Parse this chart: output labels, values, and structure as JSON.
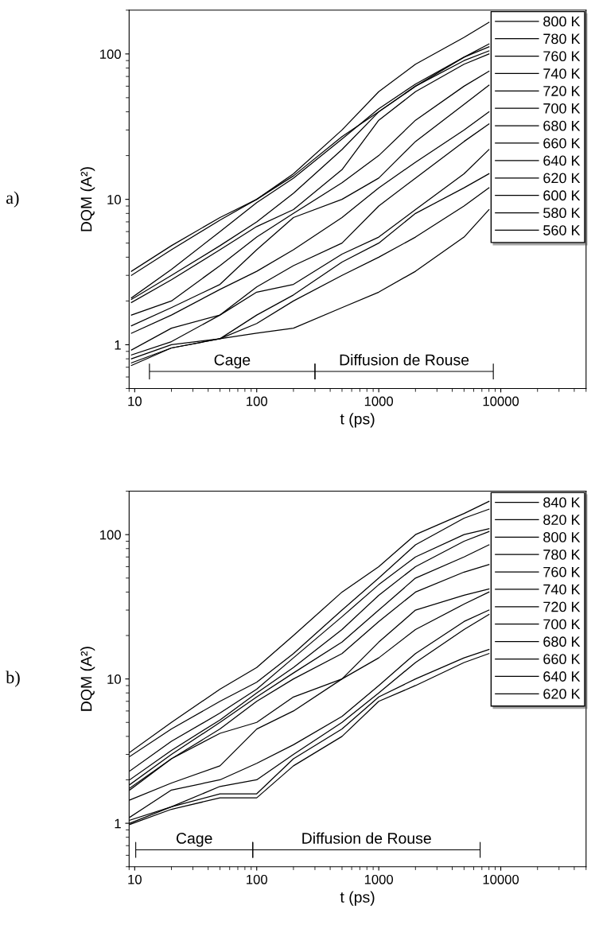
{
  "chart_data": [
    {
      "type": "line",
      "xlabel": "t (ps)",
      "ylabel": "DQM (A²)",
      "log": "xy",
      "xlim": [
        9,
        50000
      ],
      "ylim": [
        0.5,
        200
      ],
      "xticks": [
        10,
        100,
        1000,
        10000
      ],
      "yticks": [
        1,
        10,
        100
      ],
      "legend": "top right",
      "grid": false,
      "marker": "none",
      "line_style": "solid",
      "annotations": [
        "a)",
        "Cage",
        "Diffusion de Rouse"
      ],
      "x": [
        9.4,
        20,
        50,
        100,
        200,
        500,
        1000,
        2000,
        5000,
        8000
      ],
      "series": [
        {
          "name": "800 K",
          "color": "#000000",
          "values": [
            3.2,
            4.8,
            7.5,
            10,
            15,
            30,
            55,
            85,
            130,
            165
          ]
        },
        {
          "name": "780 K",
          "color": "#000000",
          "values": [
            3.0,
            4.5,
            7.2,
            10,
            14.5,
            27,
            40,
            60,
            95,
            117
          ]
        },
        {
          "name": "760 K",
          "color": "#000000",
          "values": [
            2.1,
            3.3,
            6,
            9.5,
            14,
            26,
            42,
            62,
            95,
            112
          ]
        },
        {
          "name": "740 K",
          "color": "#000000",
          "values": [
            2.05,
            3.0,
            4.8,
            7,
            11,
            22,
            40,
            60,
            90,
            105
          ]
        },
        {
          "name": "720 K",
          "color": "#000000",
          "values": [
            1.95,
            2.8,
            4.5,
            6.5,
            8.5,
            16,
            35,
            55,
            85,
            100
          ]
        },
        {
          "name": "700 K",
          "color": "#000000",
          "values": [
            1.6,
            2.0,
            3.5,
            5.5,
            8,
            13,
            20,
            35,
            60,
            76
          ]
        },
        {
          "name": "680 K",
          "color": "#000000",
          "values": [
            1.35,
            1.8,
            2.6,
            4.5,
            7.5,
            10,
            14,
            25,
            45,
            61
          ]
        },
        {
          "name": "660 K",
          "color": "#000000",
          "values": [
            1.2,
            1.6,
            2.4,
            3.2,
            4.5,
            7.5,
            12,
            18,
            30,
            40
          ]
        },
        {
          "name": "640 K",
          "color": "#000000",
          "values": [
            0.92,
            1.3,
            1.6,
            2.5,
            3.5,
            5,
            9,
            14,
            25,
            33
          ]
        },
        {
          "name": "620 K",
          "color": "#000000",
          "values": [
            0.85,
            1.05,
            1.6,
            2.3,
            2.6,
            4.2,
            5.5,
            8.5,
            15,
            22
          ]
        },
        {
          "name": "600 K",
          "color": "#000000",
          "values": [
            0.8,
            1.0,
            1.1,
            1.6,
            2.2,
            3.7,
            5,
            8,
            12,
            15
          ]
        },
        {
          "name": "580 K",
          "color": "#000000",
          "values": [
            0.75,
            0.95,
            1.1,
            1.4,
            2.0,
            3.0,
            4,
            5.5,
            9,
            12
          ]
        },
        {
          "name": "560 K",
          "color": "#000000",
          "values": [
            0.72,
            0.95,
            1.1,
            1.2,
            1.3,
            1.8,
            2.3,
            3.2,
            5.5,
            8.5
          ]
        }
      ]
    },
    {
      "type": "line",
      "xlabel": "t (ps)",
      "ylabel": "DQM (A²)",
      "log": "xy",
      "xlim": [
        9,
        50000
      ],
      "ylim": [
        0.5,
        200
      ],
      "xticks": [
        10,
        100,
        1000,
        10000
      ],
      "yticks": [
        1,
        10,
        100
      ],
      "legend": "top right",
      "grid": false,
      "marker": "none",
      "line_style": "solid",
      "annotations": [
        "b)",
        "Cage",
        "Diffusion de Rouse"
      ],
      "x": [
        9.1,
        20,
        50,
        100,
        200,
        500,
        1000,
        2000,
        5000,
        8000
      ],
      "series": [
        {
          "name": "840 K",
          "color": "#000000",
          "values": [
            3.1,
            5,
            8.5,
            12,
            20,
            40,
            60,
            100,
            140,
            170
          ]
        },
        {
          "name": "820 K",
          "color": "#000000",
          "values": [
            2.9,
            4.5,
            7,
            9.5,
            15,
            30,
            50,
            85,
            130,
            150
          ]
        },
        {
          "name": "800 K",
          "color": "#000000",
          "values": [
            2.3,
            3.7,
            5.8,
            8.5,
            14,
            27,
            45,
            70,
            100,
            110
          ]
        },
        {
          "name": "780 K",
          "color": "#000000",
          "values": [
            2.0,
            3.2,
            5.2,
            8,
            12,
            22,
            38,
            60,
            90,
            105
          ]
        },
        {
          "name": "760 K",
          "color": "#000000",
          "values": [
            1.85,
            3.0,
            5,
            7.5,
            11,
            18,
            30,
            50,
            70,
            85
          ]
        },
        {
          "name": "740 K",
          "color": "#000000",
          "values": [
            1.75,
            2.8,
            4.5,
            7,
            10,
            15,
            25,
            40,
            55,
            62
          ]
        },
        {
          "name": "720 K",
          "color": "#000000",
          "values": [
            1.7,
            2.8,
            4.2,
            5,
            7.5,
            10,
            18,
            30,
            38,
            42
          ]
        },
        {
          "name": "700 K",
          "color": "#000000",
          "values": [
            1.45,
            1.9,
            2.5,
            4.5,
            6,
            10,
            14,
            22,
            33,
            40
          ]
        },
        {
          "name": "680 K",
          "color": "#000000",
          "values": [
            1.1,
            1.7,
            2.0,
            2.6,
            3.5,
            5.5,
            9,
            15,
            25,
            30
          ]
        },
        {
          "name": "660 K",
          "color": "#000000",
          "values": [
            1.05,
            1.3,
            1.8,
            2.0,
            3,
            5,
            8,
            13,
            22,
            28
          ]
        },
        {
          "name": "640 K",
          "color": "#000000",
          "values": [
            1.0,
            1.3,
            1.6,
            1.6,
            2.8,
            4.5,
            7.5,
            10,
            14,
            16
          ]
        },
        {
          "name": "620 K",
          "color": "#000000",
          "values": [
            0.98,
            1.25,
            1.5,
            1.5,
            2.5,
            4,
            7,
            9,
            13,
            15
          ]
        }
      ]
    }
  ]
}
